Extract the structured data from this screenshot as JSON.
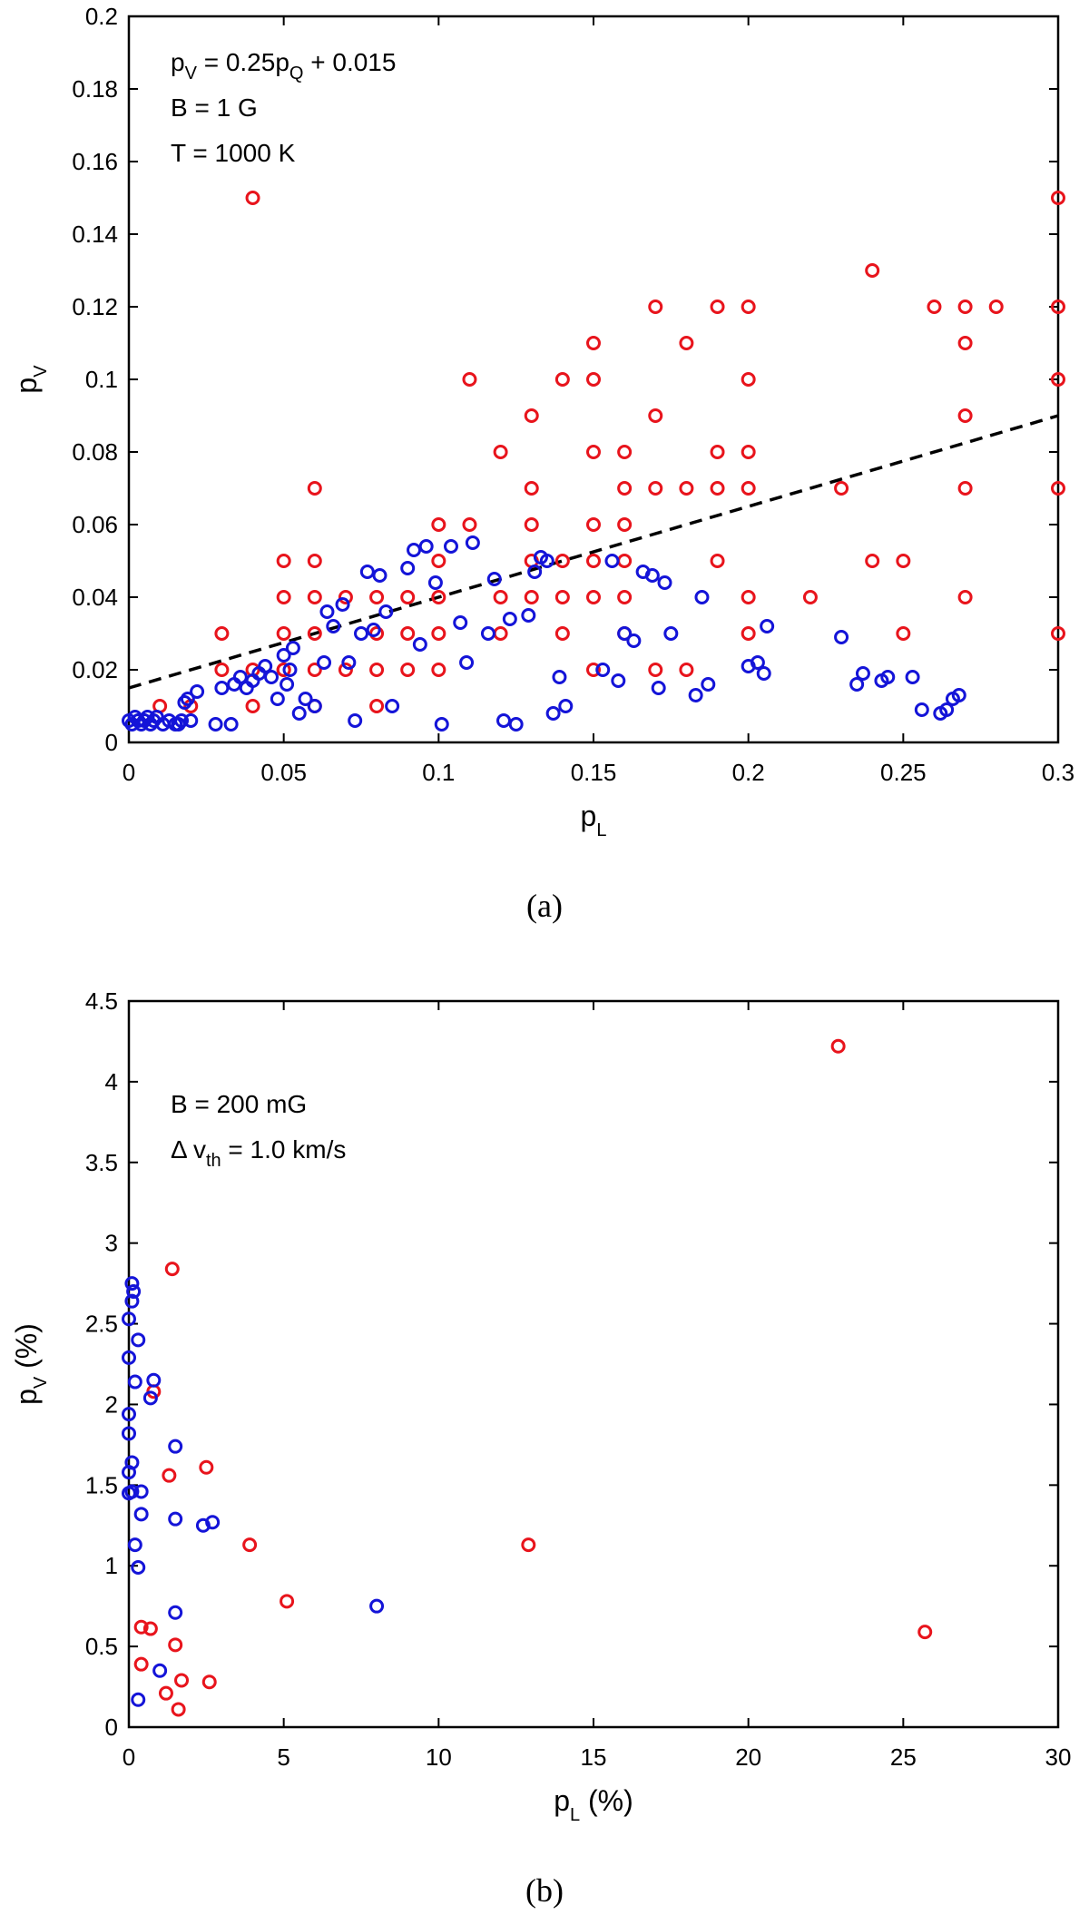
{
  "chart_data": [
    {
      "id": "a",
      "type": "scatter",
      "caption": "(a)",
      "xlabel": "p",
      "xlabel_sub": "L",
      "ylabel": "p",
      "ylabel_sub": "V",
      "xlim": [
        0,
        0.3
      ],
      "ylim": [
        0,
        0.2
      ],
      "xticks": [
        0,
        0.05,
        0.1,
        0.15,
        0.2,
        0.25,
        0.3
      ],
      "xtick_labels": [
        "0",
        "0.05",
        "0.1",
        "0.15",
        "0.2",
        "0.25",
        "0.3"
      ],
      "yticks": [
        0,
        0.02,
        0.04,
        0.06,
        0.08,
        0.1,
        0.12,
        0.14,
        0.16,
        0.18,
        0.2
      ],
      "ytick_labels": [
        "0",
        "0.02",
        "0.04",
        "0.06",
        "0.08",
        "0.1",
        "0.12",
        "0.14",
        "0.16",
        "0.18",
        "0.2"
      ],
      "annotations": [
        {
          "parts": [
            {
              "t": "p"
            },
            {
              "t": "V",
              "sub": true
            },
            {
              "t": " = 0.25p"
            },
            {
              "t": "Q",
              "sub": true
            },
            {
              "t": " + 0.015"
            }
          ]
        },
        {
          "parts": [
            {
              "t": "B = 1 G"
            }
          ]
        },
        {
          "parts": [
            {
              "t": "T = 1000 K"
            }
          ]
        }
      ],
      "fit_line": {
        "label": "p_V = 0.25p_Q + 0.015",
        "slope": 0.25,
        "intercept": 0.015,
        "x_range": [
          0,
          0.3
        ],
        "color": "#000000",
        "style": "dashed"
      },
      "series": [
        {
          "name": "red",
          "color": "#e8141c",
          "x": [
            0.01,
            0.02,
            0.03,
            0.03,
            0.04,
            0.04,
            0.04,
            0.05,
            0.05,
            0.05,
            0.05,
            0.05,
            0.06,
            0.06,
            0.06,
            0.06,
            0.06,
            0.06,
            0.07,
            0.07,
            0.08,
            0.08,
            0.08,
            0.08,
            0.09,
            0.09,
            0.09,
            0.1,
            0.1,
            0.1,
            0.1,
            0.1,
            0.11,
            0.11,
            0.12,
            0.12,
            0.12,
            0.13,
            0.13,
            0.13,
            0.13,
            0.13,
            0.14,
            0.14,
            0.14,
            0.14,
            0.15,
            0.15,
            0.15,
            0.15,
            0.15,
            0.15,
            0.15,
            0.16,
            0.16,
            0.16,
            0.16,
            0.16,
            0.16,
            0.17,
            0.17,
            0.17,
            0.17,
            0.18,
            0.18,
            0.18,
            0.19,
            0.19,
            0.19,
            0.19,
            0.2,
            0.2,
            0.2,
            0.2,
            0.2,
            0.2,
            0.22,
            0.23,
            0.24,
            0.24,
            0.25,
            0.25,
            0.26,
            0.27,
            0.27,
            0.27,
            0.27,
            0.27,
            0.28,
            0.3,
            0.3,
            0.3,
            0.3,
            0.3
          ],
          "y": [
            0.01,
            0.01,
            0.03,
            0.02,
            0.15,
            0.02,
            0.01,
            0.05,
            0.04,
            0.03,
            0.02,
            0.02,
            0.07,
            0.05,
            0.04,
            0.03,
            0.02,
            0.01,
            0.04,
            0.02,
            0.04,
            0.03,
            0.02,
            0.01,
            0.04,
            0.03,
            0.02,
            0.06,
            0.05,
            0.04,
            0.03,
            0.02,
            0.1,
            0.06,
            0.08,
            0.04,
            0.03,
            0.09,
            0.07,
            0.06,
            0.05,
            0.04,
            0.1,
            0.05,
            0.04,
            0.03,
            0.11,
            0.1,
            0.08,
            0.06,
            0.05,
            0.04,
            0.02,
            0.08,
            0.07,
            0.06,
            0.05,
            0.04,
            0.03,
            0.12,
            0.09,
            0.07,
            0.02,
            0.11,
            0.07,
            0.02,
            0.12,
            0.08,
            0.07,
            0.05,
            0.12,
            0.1,
            0.08,
            0.07,
            0.04,
            0.03,
            0.04,
            0.07,
            0.13,
            0.05,
            0.05,
            0.03,
            0.12,
            0.12,
            0.11,
            0.09,
            0.07,
            0.04,
            0.12,
            0.15,
            0.12,
            0.1,
            0.07,
            0.03
          ]
        },
        {
          "name": "blue",
          "color": "#1414d8",
          "x": [
            0.0,
            0.001,
            0.002,
            0.003,
            0.004,
            0.005,
            0.006,
            0.007,
            0.008,
            0.009,
            0.011,
            0.013,
            0.015,
            0.016,
            0.017,
            0.018,
            0.019,
            0.02,
            0.022,
            0.028,
            0.03,
            0.033,
            0.034,
            0.036,
            0.038,
            0.04,
            0.042,
            0.044,
            0.046,
            0.048,
            0.05,
            0.051,
            0.052,
            0.053,
            0.055,
            0.057,
            0.06,
            0.063,
            0.064,
            0.066,
            0.069,
            0.071,
            0.073,
            0.075,
            0.077,
            0.079,
            0.081,
            0.083,
            0.085,
            0.09,
            0.092,
            0.094,
            0.096,
            0.099,
            0.101,
            0.104,
            0.107,
            0.109,
            0.111,
            0.116,
            0.118,
            0.121,
            0.123,
            0.125,
            0.129,
            0.131,
            0.133,
            0.135,
            0.137,
            0.139,
            0.141,
            0.153,
            0.156,
            0.158,
            0.16,
            0.163,
            0.166,
            0.169,
            0.171,
            0.173,
            0.175,
            0.183,
            0.185,
            0.187,
            0.2,
            0.203,
            0.205,
            0.206,
            0.23,
            0.235,
            0.237,
            0.243,
            0.245,
            0.253,
            0.256,
            0.262,
            0.264,
            0.266,
            0.268
          ],
          "y": [
            0.006,
            0.005,
            0.007,
            0.006,
            0.005,
            0.006,
            0.007,
            0.005,
            0.006,
            0.007,
            0.005,
            0.006,
            0.005,
            0.005,
            0.006,
            0.011,
            0.012,
            0.006,
            0.014,
            0.005,
            0.015,
            0.005,
            0.016,
            0.018,
            0.015,
            0.017,
            0.019,
            0.021,
            0.018,
            0.012,
            0.024,
            0.016,
            0.02,
            0.026,
            0.008,
            0.012,
            0.01,
            0.022,
            0.036,
            0.032,
            0.038,
            0.022,
            0.006,
            0.03,
            0.047,
            0.031,
            0.046,
            0.036,
            0.01,
            0.048,
            0.053,
            0.027,
            0.054,
            0.044,
            0.005,
            0.054,
            0.033,
            0.022,
            0.055,
            0.03,
            0.045,
            0.006,
            0.034,
            0.005,
            0.035,
            0.047,
            0.051,
            0.05,
            0.008,
            0.018,
            0.01,
            0.02,
            0.05,
            0.017,
            0.03,
            0.028,
            0.047,
            0.046,
            0.015,
            0.044,
            0.03,
            0.013,
            0.04,
            0.016,
            0.021,
            0.022,
            0.019,
            0.032,
            0.029,
            0.016,
            0.019,
            0.017,
            0.018,
            0.018,
            0.009,
            0.008,
            0.009,
            0.012,
            0.013
          ]
        }
      ]
    },
    {
      "id": "b",
      "type": "scatter",
      "caption": "(b)",
      "xlabel": "p",
      "xlabel_sub": "L",
      "xlabel_suffix": " (%)",
      "ylabel": "p",
      "ylabel_sub": "V",
      "ylabel_suffix": " (%)",
      "xlim": [
        0,
        30
      ],
      "ylim": [
        0,
        4.5
      ],
      "xticks": [
        0,
        5,
        10,
        15,
        20,
        25,
        30
      ],
      "xtick_labels": [
        "0",
        "5",
        "10",
        "15",
        "20",
        "25",
        "30"
      ],
      "yticks": [
        0,
        0.5,
        1,
        1.5,
        2,
        2.5,
        3,
        3.5,
        4,
        4.5
      ],
      "ytick_labels": [
        "0",
        "0.5",
        "1",
        "1.5",
        "2",
        "2.5",
        "3",
        "3.5",
        "4",
        "4.5"
      ],
      "annotations": [
        {
          "parts": [
            {
              "t": "B = 200 mG"
            }
          ]
        },
        {
          "parts": [
            {
              "t": "Δ v"
            },
            {
              "t": "th",
              "sub": true
            },
            {
              "t": " = 1.0 km/s"
            }
          ]
        }
      ],
      "series": [
        {
          "name": "red",
          "color": "#e8141c",
          "x": [
            22.9,
            1.4,
            0.8,
            2.5,
            1.3,
            3.9,
            12.9,
            5.1,
            25.7,
            0.4,
            0.7,
            1.5,
            0.4,
            1.2,
            1.7,
            2.6,
            1.6
          ],
          "y": [
            4.22,
            2.84,
            2.08,
            1.61,
            1.56,
            1.13,
            1.13,
            0.78,
            0.59,
            0.62,
            0.61,
            0.51,
            0.39,
            0.21,
            0.29,
            0.28,
            0.11
          ]
        },
        {
          "name": "blue",
          "color": "#1414d8",
          "x": [
            0.1,
            0.15,
            0.1,
            0.0,
            0.3,
            0.0,
            0.2,
            0.0,
            0.8,
            0.7,
            0.0,
            1.5,
            0.1,
            0.0,
            0.1,
            0.0,
            0.4,
            0.4,
            1.5,
            2.7,
            2.4,
            0.2,
            0.3,
            8.0,
            1.5,
            1.0,
            0.3
          ],
          "y": [
            2.75,
            2.7,
            2.64,
            2.53,
            2.4,
            2.29,
            2.14,
            1.94,
            2.15,
            2.04,
            1.82,
            1.74,
            1.64,
            1.58,
            1.46,
            1.45,
            1.46,
            1.32,
            1.29,
            1.27,
            1.25,
            1.13,
            0.99,
            0.75,
            0.71,
            0.35,
            0.17
          ]
        }
      ]
    }
  ]
}
